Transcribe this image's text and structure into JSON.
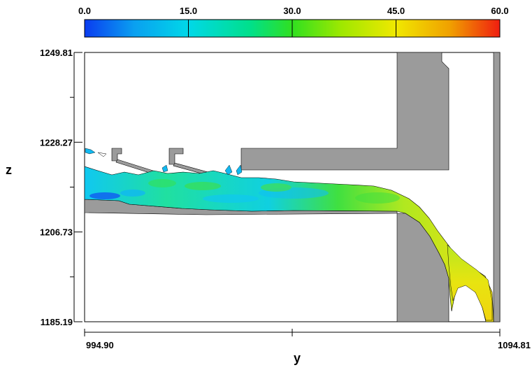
{
  "chart_data": {
    "type": "heatmap",
    "title": "",
    "xlabel": "y",
    "ylabel": "z",
    "xlim": [
      994.9,
      1094.81
    ],
    "ylim": [
      1185.19,
      1249.81
    ],
    "x_tick_labels": [
      "994.90",
      "1094.81"
    ],
    "y_tick_labels": [
      "1249.81",
      "1228.27",
      "1206.73",
      "1185.19"
    ],
    "colorbar": {
      "range": [
        0.0,
        60.0
      ],
      "tick_labels": [
        "0.0",
        "15.0",
        "30.0",
        "45.0",
        "60.0"
      ],
      "colors": [
        "#0a3cf0",
        "#00c8f0",
        "#00e0a0",
        "#30e020",
        "#c8f000",
        "#f0e000",
        "#f0a000",
        "#f02000"
      ]
    },
    "field": "flow velocity magnitude along a spillway channel",
    "solid_color": "#9b9b9b"
  }
}
